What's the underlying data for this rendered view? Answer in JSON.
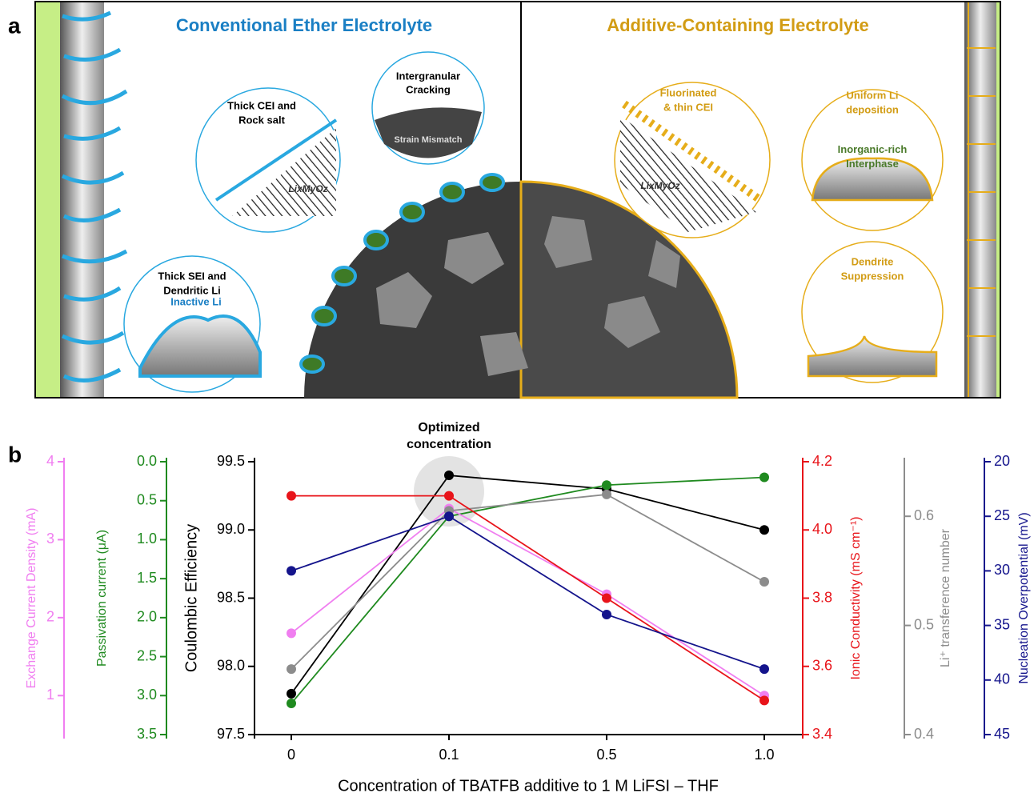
{
  "panel_a": {
    "label": "a",
    "left_title": "Conventional Ether Electrolyte",
    "right_title": "Additive-Containing Electrolyte",
    "callouts": [
      {
        "lines": [
          "Thick CEI and",
          "Rock salt"
        ],
        "inner": "LixMyOz"
      },
      {
        "lines": [
          "Intergranular",
          "Cracking"
        ],
        "inner": "Strain Mismatch"
      },
      {
        "lines": [
          "Thick SEI and",
          "Dendritic Li"
        ],
        "inner": "Inactive Li"
      },
      {
        "lines": [
          "Fluorinated",
          "& thin CEI"
        ],
        "inner": "LixMyOz"
      },
      {
        "lines": [
          "Uniform Li",
          "deposition"
        ],
        "inner": "Inorganic-rich Interphase"
      },
      {
        "lines": [
          "Dendrite",
          "Suppression"
        ]
      }
    ]
  },
  "chart_data": {
    "type": "line",
    "panel_label": "b",
    "annotation": "Optimized concentration",
    "x_label": "Concentration of TBATFB additive to 1 M LiFSI – THF",
    "categories": [
      "0",
      "0.1",
      "0.5",
      "1.0"
    ],
    "axes": [
      {
        "label": "Exchange Current Density (mA)",
        "color": "#f07ef0",
        "lim": [
          0.5,
          4
        ],
        "ticks": [
          1,
          2,
          3,
          4
        ]
      },
      {
        "label": "Passivation current (μA)",
        "color": "#1f8a1f",
        "lim": [
          3.5,
          0
        ],
        "ticks": [
          {
            "value": 0,
            "label": "0.0"
          },
          0.5,
          {
            "value": 1,
            "label": "1.0"
          },
          1.5,
          {
            "value": 2,
            "label": "2.0"
          },
          2.5,
          {
            "value": 3,
            "label": "3.0"
          },
          3.5
        ]
      },
      {
        "label": "Coulombic Efficiency",
        "color": "#000000",
        "lim": [
          97.5,
          99.5
        ],
        "ticks": [
          97.5,
          {
            "value": 98,
            "label": "98.0"
          },
          98.5,
          {
            "value": 99,
            "label": "99.0"
          },
          99.5
        ]
      },
      {
        "label": "Ionic Conductivity (mS cm⁻¹)",
        "color": "#e8141a",
        "lim": [
          3.4,
          4.2
        ],
        "ticks": [
          3.4,
          3.6,
          3.8,
          {
            "value": 4,
            "label": "4.0"
          },
          4.2
        ]
      },
      {
        "label": "Li⁺ transference number",
        "color": "#8c8c8c",
        "lim": [
          0.4,
          0.65
        ],
        "ticks": [
          0.4,
          0.5,
          0.6
        ]
      },
      {
        "label": "Nucleation Overpotential (mV)",
        "color": "#14148c",
        "lim": [
          45,
          20
        ],
        "ticks": [
          20,
          25,
          30,
          35,
          40,
          45
        ]
      }
    ],
    "series": [
      {
        "axis": 2,
        "color": "#000000",
        "values": [
          97.8,
          99.4,
          99.3,
          99.0
        ]
      },
      {
        "axis": 1,
        "color": "#1f8a1f",
        "values": [
          3.1,
          0.7,
          0.3,
          0.2
        ]
      },
      {
        "axis": 0,
        "color": "#f07ef0",
        "values": [
          1.8,
          3.4,
          2.3,
          1.0
        ]
      },
      {
        "axis": 4,
        "color": "#8c8c8c",
        "values": [
          0.46,
          0.605,
          0.62,
          0.54
        ]
      },
      {
        "axis": 3,
        "color": "#e8141a",
        "values": [
          4.1,
          4.1,
          3.8,
          3.5
        ]
      },
      {
        "axis": 5,
        "color": "#14148c",
        "values": [
          30,
          25,
          34,
          39
        ]
      }
    ]
  }
}
